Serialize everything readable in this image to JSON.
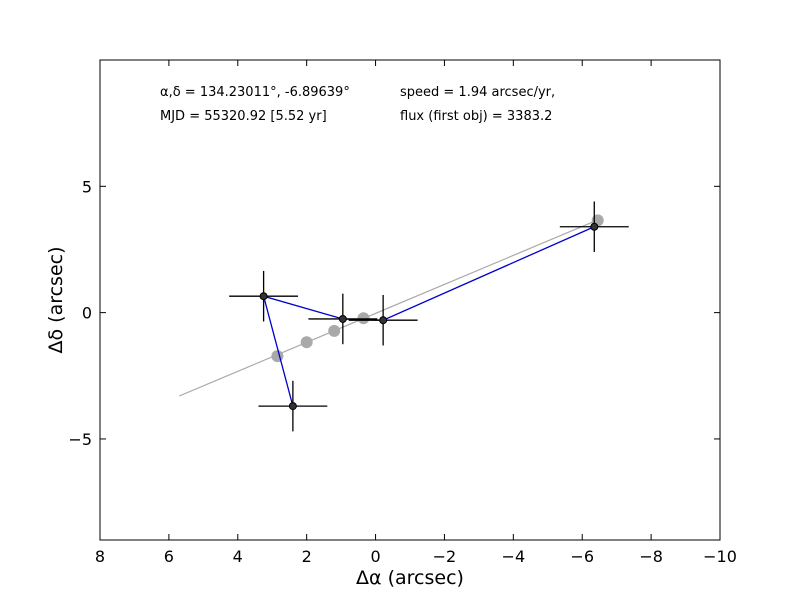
{
  "chart_data": {
    "type": "scatter",
    "title": "",
    "xlabel": "Δα (arcsec)",
    "ylabel": "Δδ (arcsec)",
    "xlim": [
      8,
      -10
    ],
    "ylim": [
      -9,
      10
    ],
    "x_ticks": [
      8,
      6,
      4,
      2,
      0,
      -2,
      -4,
      -6,
      -8,
      -10
    ],
    "x_tick_labels": [
      "8",
      "6",
      "4",
      "2",
      "0",
      "−2",
      "−4",
      "−6",
      "−8",
      "−10"
    ],
    "y_ticks": [
      5,
      0,
      -5
    ],
    "y_tick_labels": [
      "5",
      "0",
      "−5"
    ],
    "grid": false,
    "annotations": [
      {
        "text": "α,δ = 134.23011°, -6.89639°"
      },
      {
        "text": "speed = 1.94 arcsec/yr,"
      },
      {
        "text": "MJD = 55320.92 [5.52 yr]"
      },
      {
        "text": "flux (first obj) = 3383.2"
      }
    ],
    "observed_points": [
      {
        "x": 3.25,
        "y": 0.65,
        "xerr": 1.0,
        "yerr": 1.0
      },
      {
        "x": 2.4,
        "y": -3.7,
        "xerr": 1.0,
        "yerr": 1.0
      },
      {
        "x": 0.95,
        "y": -0.25,
        "xerr": 1.0,
        "yerr": 1.0
      },
      {
        "x": -0.22,
        "y": -0.3,
        "xerr": 1.0,
        "yerr": 1.0
      },
      {
        "x": -6.35,
        "y": 3.4,
        "xerr": 1.0,
        "yerr": 1.0
      }
    ],
    "observed_path_order": [
      4,
      3,
      2,
      0,
      1
    ],
    "predicted_points": [
      {
        "x": 2.85,
        "y": -1.72
      },
      {
        "x": 2.0,
        "y": -1.17
      },
      {
        "x": 1.2,
        "y": -0.72
      },
      {
        "x": 0.35,
        "y": -0.22
      },
      {
        "x": -6.45,
        "y": 3.65
      }
    ],
    "fit_line": {
      "x": [
        5.7,
        -6.5
      ],
      "y": [
        -3.3,
        3.7
      ]
    },
    "colors": {
      "observed": "#333333",
      "observed_edge": "#000000",
      "path": "#0000cc",
      "predicted": "#a9a9a9",
      "fit_line": "#a9a9a9"
    }
  }
}
